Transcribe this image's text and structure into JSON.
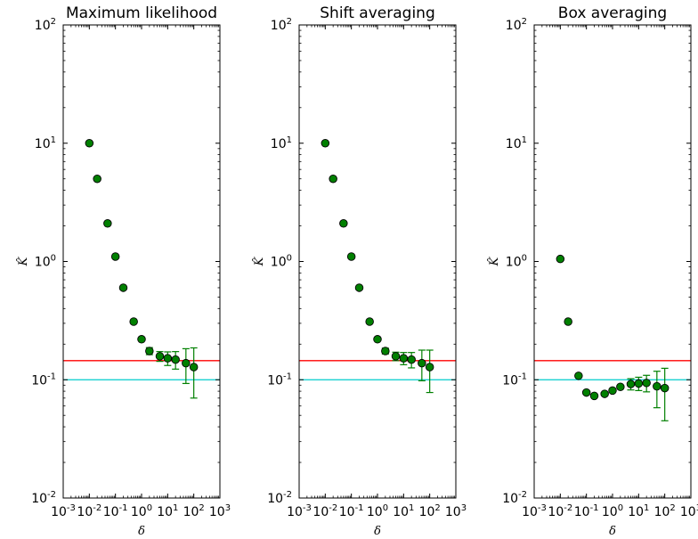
{
  "chart_data": [
    {
      "type": "scatter",
      "title": "Maximum likelihood",
      "xlabel": "δ",
      "ylabel": "K̂",
      "xscale": "log",
      "yscale": "log",
      "xlim": [
        0.001,
        1000
      ],
      "ylim": [
        0.01,
        100
      ],
      "grid": false,
      "hlines": [
        {
          "y": 0.145,
          "color": "#ff0000"
        },
        {
          "y": 0.1,
          "color": "#00cccc"
        }
      ],
      "series": [
        {
          "color": "#008000",
          "x": [
            0.01,
            0.02,
            0.05,
            0.1,
            0.2,
            0.5,
            1,
            2,
            5,
            10,
            20,
            50,
            100
          ],
          "y": [
            10.0,
            5.0,
            2.1,
            1.1,
            0.6,
            0.31,
            0.22,
            0.175,
            0.158,
            0.152,
            0.148,
            0.138,
            0.128
          ],
          "err": [
            0,
            0,
            0,
            0,
            0,
            0,
            0,
            0.012,
            0.015,
            0.02,
            0.025,
            0.045,
            0.058
          ]
        }
      ]
    },
    {
      "type": "scatter",
      "title": "Shift averaging",
      "xlabel": "δ",
      "ylabel": "K̂",
      "xscale": "log",
      "yscale": "log",
      "xlim": [
        0.001,
        1000
      ],
      "ylim": [
        0.01,
        100
      ],
      "grid": false,
      "hlines": [
        {
          "y": 0.145,
          "color": "#ff0000"
        },
        {
          "y": 0.1,
          "color": "#00cccc"
        }
      ],
      "series": [
        {
          "color": "#008000",
          "x": [
            0.01,
            0.02,
            0.05,
            0.1,
            0.2,
            0.5,
            1,
            2,
            5,
            10,
            20,
            50,
            100
          ],
          "y": [
            10.0,
            5.0,
            2.1,
            1.1,
            0.6,
            0.31,
            0.22,
            0.175,
            0.158,
            0.152,
            0.148,
            0.138,
            0.128
          ],
          "err": [
            0,
            0,
            0,
            0,
            0,
            0,
            0,
            0.01,
            0.013,
            0.018,
            0.022,
            0.04,
            0.05
          ]
        }
      ]
    },
    {
      "type": "scatter",
      "title": "Box averaging",
      "xlabel": "δ",
      "ylabel": "K̂",
      "xscale": "log",
      "yscale": "log",
      "xlim": [
        0.001,
        1000
      ],
      "ylim": [
        0.01,
        100
      ],
      "grid": false,
      "hlines": [
        {
          "y": 0.145,
          "color": "#ff0000"
        },
        {
          "y": 0.1,
          "color": "#00cccc"
        }
      ],
      "series": [
        {
          "color": "#008000",
          "x": [
            0.01,
            0.02,
            0.05,
            0.1,
            0.2,
            0.5,
            1,
            2,
            5,
            10,
            20,
            50,
            100
          ],
          "y": [
            1.05,
            0.31,
            0.108,
            0.078,
            0.073,
            0.076,
            0.081,
            0.087,
            0.092,
            0.093,
            0.094,
            0.088,
            0.085
          ],
          "err": [
            0,
            0,
            0,
            0,
            0,
            0,
            0,
            0,
            0.01,
            0.012,
            0.015,
            0.03,
            0.04
          ]
        }
      ]
    }
  ]
}
